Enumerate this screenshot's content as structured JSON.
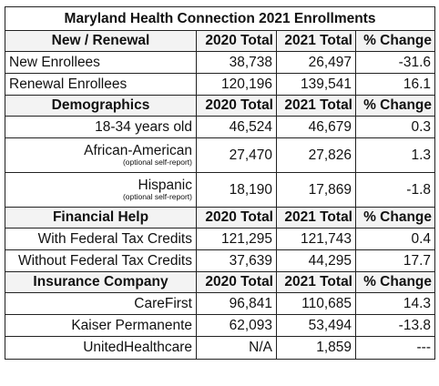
{
  "title": "Maryland Health Connection 2021 Enrollments",
  "columns": [
    "2020 Total",
    "2021 Total",
    "% Change"
  ],
  "sections": [
    {
      "header": "New / Renewal",
      "rows": [
        {
          "label": "New Enrollees",
          "v2020": "38,738",
          "v2021": "26,497",
          "change": "-31.6"
        },
        {
          "label": "Renewal Enrollees",
          "v2020": "120,196",
          "v2021": "139,541",
          "change": "16.1"
        }
      ]
    },
    {
      "header": "Demographics",
      "rows": [
        {
          "label": "18-34 years old",
          "v2020": "46,524",
          "v2021": "46,679",
          "change": "0.3"
        },
        {
          "label": "African-American",
          "note": "(optional self-report)",
          "v2020": "27,470",
          "v2021": "27,826",
          "change": "1.3"
        },
        {
          "label": "Hispanic",
          "note": "(optional self-report)",
          "v2020": "18,190",
          "v2021": "17,869",
          "change": "-1.8"
        }
      ]
    },
    {
      "header": "Financial Help",
      "rows": [
        {
          "label": "With Federal Tax Credits",
          "v2020": "121,295",
          "v2021": "121,743",
          "change": "0.4"
        },
        {
          "label": "Without Federal Tax Credits",
          "v2020": "37,639",
          "v2021": "44,295",
          "change": "17.7"
        }
      ]
    },
    {
      "header": "Insurance Company",
      "rows": [
        {
          "label": "CareFirst",
          "v2020": "96,841",
          "v2021": "110,685",
          "change": "14.3"
        },
        {
          "label": "Kaiser Permanente",
          "v2020": "62,093",
          "v2021": "53,494",
          "change": "-13.8"
        },
        {
          "label": "UnitedHealthcare",
          "v2020": "N/A",
          "v2021": "1,859",
          "change": "---"
        }
      ]
    }
  ]
}
